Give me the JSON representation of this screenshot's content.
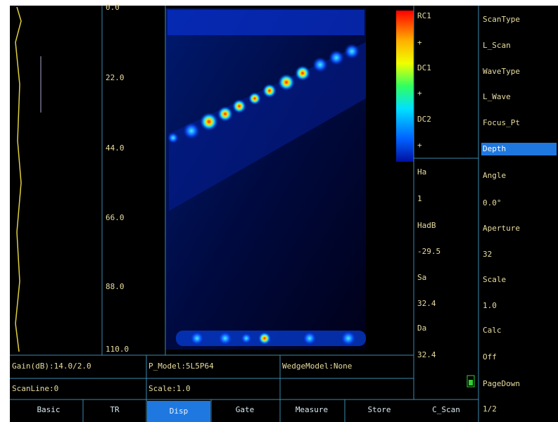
{
  "depth_scale": [
    "0.0",
    "22.0",
    "44.0",
    "66.0",
    "88.0",
    "110.0"
  ],
  "color_bar_labels": [
    "RC1",
    "+",
    "DC1",
    "+",
    "DC2",
    "+"
  ],
  "readouts": [
    {
      "label": "Ha",
      "value": "1"
    },
    {
      "label": "HadB",
      "value": "-29.5"
    },
    {
      "label": "Sa",
      "value": "32.4"
    },
    {
      "label": "Da",
      "value": "32.4"
    }
  ],
  "menu": [
    {
      "label": "ScanType",
      "value": "L_Scan"
    },
    {
      "label": "WaveType",
      "value": "L_Wave"
    },
    {
      "label": "Focus_Pt",
      "value": "Depth"
    },
    {
      "label": "Angle",
      "value": "0.0°"
    },
    {
      "label": "Aperture",
      "value": "32"
    },
    {
      "label": "Scale",
      "value": "1.0"
    },
    {
      "label": "Calc",
      "value": "Off"
    },
    {
      "label": "PageDown",
      "value": "1/2"
    }
  ],
  "status": {
    "gain": "Gain(dB):14.0/2.0",
    "probe_model": "P_Model:5L5P64",
    "wedge_model": "WedgeModel:None",
    "scan_line": "ScanLine:0",
    "scale": "Scale:1.0"
  },
  "tabs": [
    "Basic",
    "TR",
    "Disp",
    "Gate",
    "Measure",
    "Store",
    "C_Scan"
  ]
}
